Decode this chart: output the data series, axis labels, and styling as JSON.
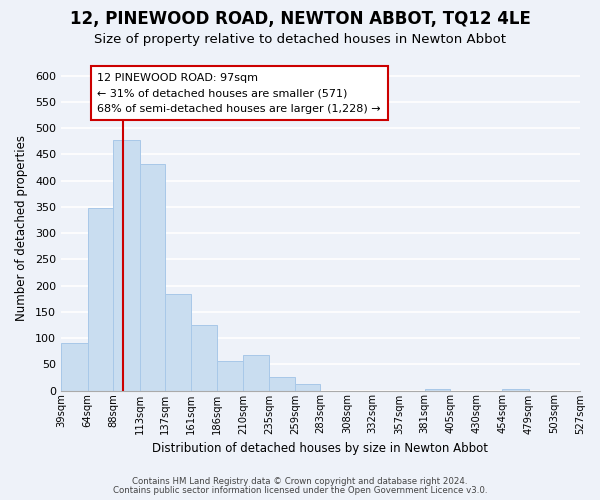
{
  "title": "12, PINEWOOD ROAD, NEWTON ABBOT, TQ12 4LE",
  "subtitle": "Size of property relative to detached houses in Newton Abbot",
  "xlabel": "Distribution of detached houses by size in Newton Abbot",
  "ylabel": "Number of detached properties",
  "bar_edges": [
    39,
    64,
    88,
    113,
    137,
    161,
    186,
    210,
    235,
    259,
    283,
    308,
    332,
    357,
    381,
    405,
    430,
    454,
    479,
    503,
    527
  ],
  "bar_heights": [
    90,
    347,
    478,
    432,
    183,
    125,
    57,
    67,
    25,
    13,
    0,
    0,
    0,
    0,
    3,
    0,
    0,
    3,
    0,
    0
  ],
  "bar_color": "#c9ddf0",
  "bar_edgecolor": "#a8c8e8",
  "vline_x": 97,
  "vline_color": "#cc0000",
  "ylim": [
    0,
    620
  ],
  "annotation_text": "12 PINEWOOD ROAD: 97sqm\n← 31% of detached houses are smaller (571)\n68% of semi-detached houses are larger (1,228) →",
  "footer_line1": "Contains HM Land Registry data © Crown copyright and database right 2024.",
  "footer_line2": "Contains public sector information licensed under the Open Government Licence v3.0.",
  "title_fontsize": 12,
  "subtitle_fontsize": 9.5,
  "tick_labels": [
    "39sqm",
    "64sqm",
    "88sqm",
    "113sqm",
    "137sqm",
    "161sqm",
    "186sqm",
    "210sqm",
    "235sqm",
    "259sqm",
    "283sqm",
    "308sqm",
    "332sqm",
    "357sqm",
    "381sqm",
    "405sqm",
    "430sqm",
    "454sqm",
    "479sqm",
    "503sqm",
    "527sqm"
  ],
  "bg_color": "#eef2f9",
  "grid_color": "#ffffff"
}
